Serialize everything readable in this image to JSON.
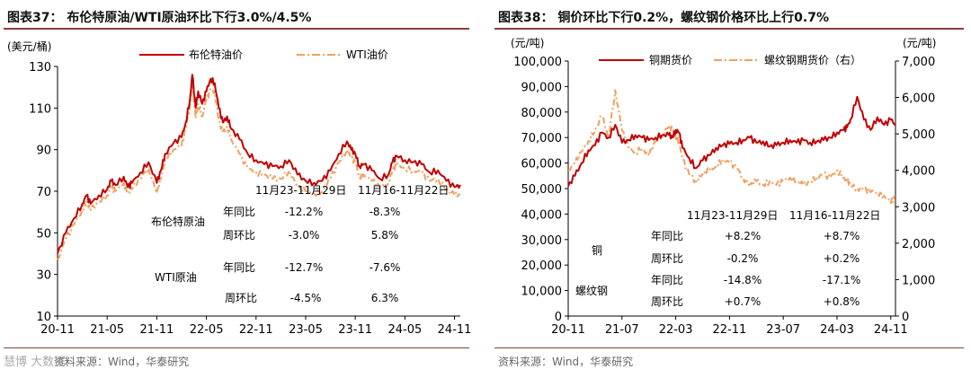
{
  "left": {
    "title": "图表37： 布伦特原油/WTI原油环比下行3.0%/4.5%",
    "source": "资料来源：Wind，华泰研究",
    "watermark": "慧博 大数据",
    "unit_left": "(美元/桶)",
    "table": {
      "col1": "11月23-11月29日",
      "col2": "11月16-11月22日",
      "rows": [
        {
          "group": "布伦特原油",
          "metric": "年同比",
          "v1": "-12.2%",
          "v2": "-8.3%"
        },
        {
          "group": "",
          "metric": "周环比",
          "v1": "-3.0%",
          "v2": "5.8%"
        },
        {
          "group": "WTI原油",
          "metric": "年同比",
          "v1": "-12.7%",
          "v2": "-7.6%"
        },
        {
          "group": "",
          "metric": "周环比",
          "v1": "-4.5%",
          "v2": "6.3%"
        }
      ]
    }
  },
  "right": {
    "title": "图表38： 铜价环比下行0.2%，螺纹钢价格环比上行0.7%",
    "source": "资料来源：Wind，华泰研究",
    "unit_left": "(元/吨)",
    "unit_right": "(元/吨)",
    "table": {
      "col1": "11月23-11月29日",
      "col2": "11月16-11月22日",
      "rows": [
        {
          "group": "铜",
          "metric": "年同比",
          "v1": "+8.2%",
          "v2": "+8.7%"
        },
        {
          "group": "",
          "metric": "周环比",
          "v1": "-0.2%",
          "v2": "+0.2%"
        },
        {
          "group": "螺纹钢",
          "metric": "年同比",
          "v1": "-14.8%",
          "v2": "-17.1%"
        },
        {
          "group": "",
          "metric": "周环比",
          "v1": "+0.7%",
          "v2": "+0.8%"
        }
      ]
    }
  },
  "colors": {
    "red": "#c00000",
    "orange": "#f0a060",
    "axis": "#000000"
  },
  "chart_data": [
    {
      "type": "line",
      "title": "布伦特原油/WTI原油环比下行3.0%/4.5%",
      "ylabel": "美元/桶",
      "ylim": [
        10,
        130
      ],
      "yticks": [
        10,
        30,
        50,
        70,
        90,
        110,
        130
      ],
      "xlim": [
        0,
        48.7
      ],
      "xticks": [
        {
          "label": "20-11",
          "pos": 0
        },
        {
          "label": "21-05",
          "pos": 6
        },
        {
          "label": "21-11",
          "pos": 12
        },
        {
          "label": "22-05",
          "pos": 18
        },
        {
          "label": "22-11",
          "pos": 24
        },
        {
          "label": "23-05",
          "pos": 30
        },
        {
          "label": "23-11",
          "pos": 36
        },
        {
          "label": "24-05",
          "pos": 42
        },
        {
          "label": "24-11",
          "pos": 48
        }
      ],
      "legend": "top",
      "series": [
        {
          "name": "布伦特油价",
          "color": "red",
          "style": "solid",
          "x": [
            0,
            1,
            2,
            3,
            3.5,
            4,
            5,
            6,
            6.5,
            7,
            8,
            8.5,
            9,
            10,
            11,
            12,
            12.5,
            13,
            14,
            15,
            15.5,
            16,
            16.3,
            16.7,
            17,
            17.5,
            18,
            18.5,
            19,
            19.5,
            20,
            20.5,
            21,
            22,
            23,
            24,
            25,
            26,
            27,
            28,
            29,
            30,
            31,
            32,
            33,
            34,
            35,
            35.5,
            36,
            36.5,
            37,
            38,
            39,
            40,
            40.5,
            41,
            42,
            43,
            44,
            45,
            46,
            47,
            48,
            48.7
          ],
          "y": [
            40,
            50,
            57,
            64,
            68,
            64,
            68,
            71,
            75,
            73,
            77,
            72,
            74,
            79,
            84,
            74,
            80,
            88,
            93,
            96,
            103,
            114,
            126,
            110,
            118,
            112,
            118,
            124,
            122,
            110,
            103,
            106,
            100,
            95,
            88,
            85,
            83,
            82,
            82,
            85,
            78,
            75,
            74,
            75,
            80,
            88,
            94,
            90,
            88,
            82,
            83,
            80,
            76,
            78,
            84,
            87,
            85,
            84,
            83,
            79,
            80,
            75,
            72,
            73
          ]
        },
        {
          "name": "WTI油价",
          "color": "orange",
          "style": "dashdot",
          "x": [
            0,
            1,
            2,
            3,
            3.5,
            4,
            5,
            6,
            6.5,
            7,
            8,
            8.5,
            9,
            10,
            11,
            12,
            12.5,
            13,
            14,
            15,
            15.5,
            16,
            16.3,
            16.7,
            17,
            17.5,
            18,
            18.5,
            19,
            19.5,
            20,
            20.5,
            21,
            22,
            23,
            24,
            25,
            26,
            27,
            28,
            29,
            30,
            31,
            32,
            33,
            34,
            35,
            35.5,
            36,
            36.5,
            37,
            38,
            39,
            40,
            40.5,
            41,
            42,
            43,
            44,
            45,
            46,
            47,
            48,
            48.7
          ],
          "y": [
            37,
            47,
            54,
            61,
            65,
            61,
            65,
            68,
            72,
            70,
            74,
            69,
            71,
            76,
            81,
            69,
            76,
            85,
            90,
            92,
            100,
            111,
            122,
            105,
            112,
            106,
            114,
            119,
            118,
            104,
            98,
            101,
            95,
            88,
            81,
            79,
            78,
            76,
            76,
            80,
            72,
            70,
            69,
            70,
            76,
            84,
            90,
            86,
            84,
            77,
            78,
            75,
            72,
            74,
            80,
            83,
            81,
            80,
            79,
            75,
            76,
            71,
            68,
            68.5
          ]
        }
      ]
    },
    {
      "type": "line",
      "title": "铜价环比下行0.2%，螺纹钢价格环比上行0.7%",
      "ylabel": "元/吨",
      "ylim": [
        0,
        100000
      ],
      "yticks": [
        0,
        10000,
        20000,
        30000,
        40000,
        50000,
        60000,
        70000,
        80000,
        90000,
        100000
      ],
      "ylim_right": [
        0,
        7000
      ],
      "yticks_right": [
        0,
        1000,
        2000,
        3000,
        4000,
        5000,
        6000,
        7000
      ],
      "xlim": [
        0,
        48.7
      ],
      "xticks": [
        {
          "label": "20-11",
          "pos": 0
        },
        {
          "label": "21-07",
          "pos": 8
        },
        {
          "label": "22-03",
          "pos": 16
        },
        {
          "label": "22-11",
          "pos": 24
        },
        {
          "label": "23-07",
          "pos": 32
        },
        {
          "label": "24-03",
          "pos": 40
        },
        {
          "label": "24-11",
          "pos": 48
        }
      ],
      "legend": "top",
      "series": [
        {
          "name": "铜期货价",
          "color": "red",
          "style": "solid",
          "axis": "left",
          "x": [
            0,
            1,
            2,
            3,
            4,
            5,
            6,
            7,
            8,
            9,
            10,
            11,
            12,
            13,
            14,
            15,
            15.5,
            16,
            16.5,
            17,
            18,
            19,
            20,
            21,
            22,
            23,
            24,
            25,
            26,
            27,
            28,
            29,
            30,
            31,
            32,
            33,
            34,
            35,
            36,
            37,
            38,
            39,
            40,
            41,
            41.5,
            42,
            43,
            44,
            45,
            46,
            47,
            48,
            48.7
          ],
          "y": [
            51000,
            55000,
            60000,
            65000,
            67000,
            72000,
            70000,
            75000,
            68000,
            69000,
            71000,
            70000,
            69000,
            70000,
            71000,
            71000,
            70000,
            73000,
            72000,
            66000,
            62000,
            58000,
            61000,
            63000,
            66000,
            67000,
            67500,
            68000,
            69000,
            70000,
            68000,
            68500,
            66500,
            67000,
            68000,
            69000,
            68000,
            69000,
            68000,
            68500,
            69000,
            70000,
            72000,
            73000,
            74000,
            77000,
            86000,
            77000,
            73000,
            78000,
            75000,
            77000,
            75000
          ]
        },
        {
          "name": "螺纹钢期货价（右）",
          "color": "orange",
          "style": "dashdot",
          "axis": "right",
          "x": [
            0,
            1,
            2,
            3,
            4,
            5,
            6,
            7,
            8,
            9,
            10,
            11,
            12,
            13,
            14,
            15,
            15.5,
            16,
            16.5,
            17,
            18,
            19,
            20,
            21,
            22,
            23,
            24,
            25,
            26,
            27,
            28,
            29,
            30,
            31,
            32,
            33,
            34,
            35,
            36,
            37,
            38,
            39,
            40,
            41,
            41.5,
            42,
            43,
            44,
            45,
            46,
            47,
            48,
            48.7
          ],
          "y": [
            4000,
            4200,
            4500,
            4800,
            5100,
            5500,
            4900,
            6200,
            5100,
            4600,
            4500,
            4600,
            4400,
            4800,
            5000,
            5200,
            5100,
            4900,
            4800,
            4300,
            3900,
            3700,
            3900,
            4000,
            4100,
            4300,
            4200,
            4100,
            3800,
            3600,
            3700,
            3600,
            3700,
            3600,
            3700,
            3800,
            3700,
            3600,
            3700,
            3800,
            3900,
            3800,
            4000,
            3800,
            3700,
            3600,
            3500,
            3500,
            3400,
            3400,
            3300,
            3100,
            3300
          ]
        }
      ]
    }
  ]
}
